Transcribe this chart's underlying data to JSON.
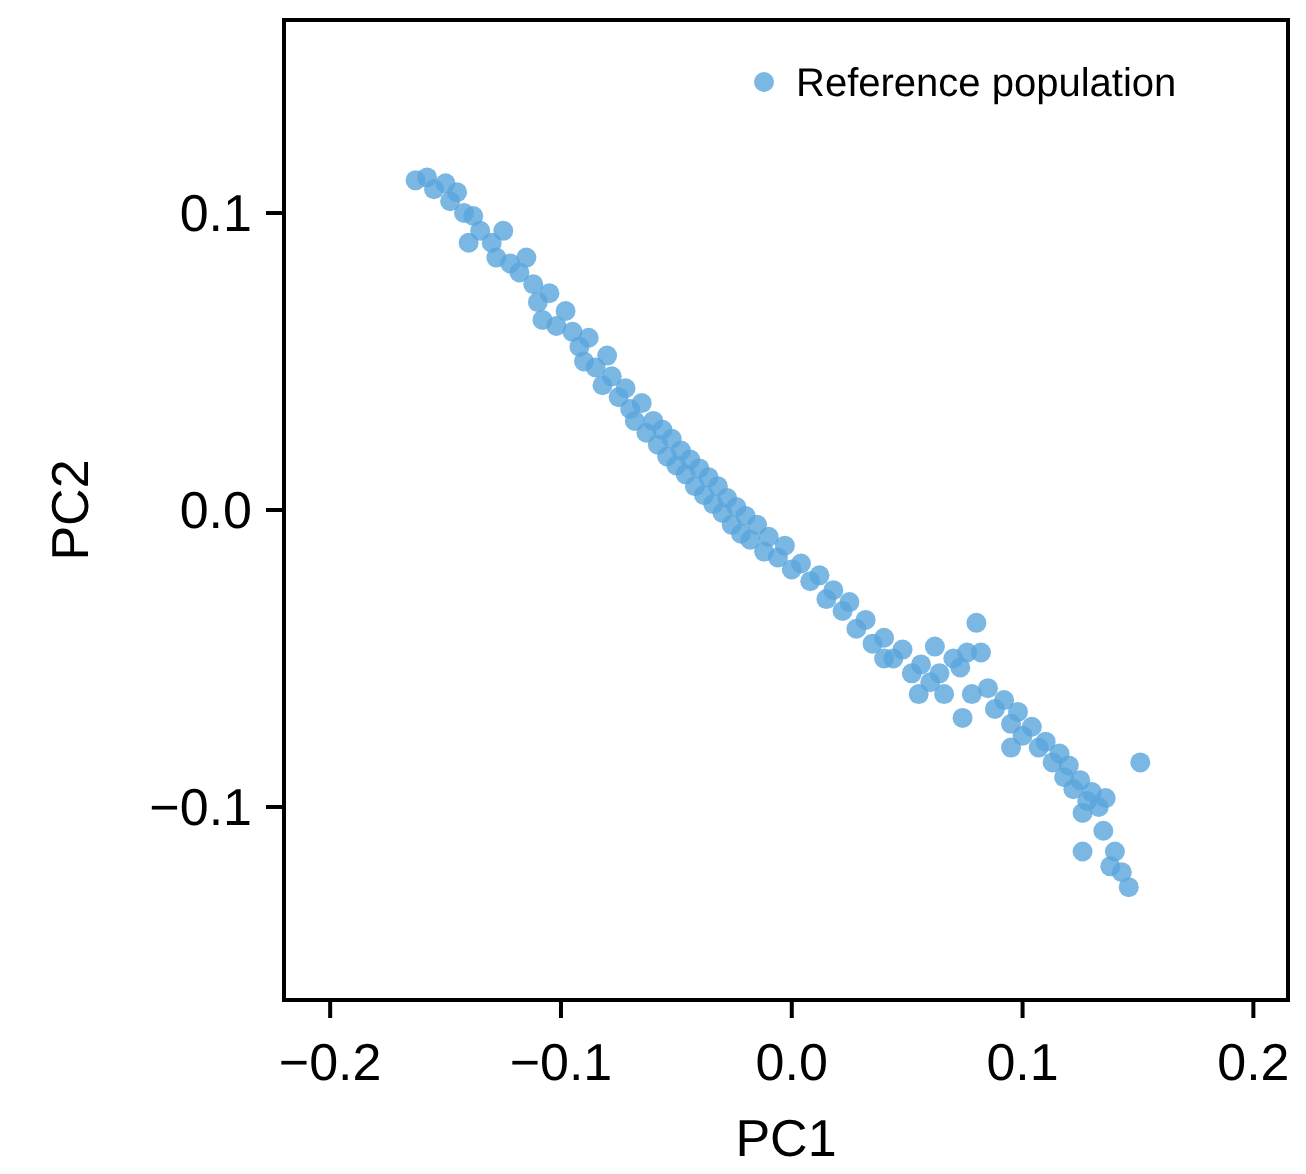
{
  "chart_data": {
    "type": "scatter",
    "xlabel": "PC1",
    "ylabel": "PC2",
    "xlim": [
      -0.22,
      0.215
    ],
    "ylim": [
      -0.165,
      0.165
    ],
    "xticks": [
      {
        "value": -0.2,
        "label": "−0.2"
      },
      {
        "value": -0.1,
        "label": "−0.1"
      },
      {
        "value": 0,
        "label": "0.0"
      },
      {
        "value": 0.1,
        "label": "0.1"
      },
      {
        "value": 0.2,
        "label": "0.2"
      }
    ],
    "yticks": [
      {
        "value": -0.1,
        "label": "−0.1"
      },
      {
        "value": 0,
        "label": "0.0"
      },
      {
        "value": 0.1,
        "label": "0.1"
      }
    ],
    "grid": false,
    "legend": "top right",
    "marker": "circle",
    "series": [
      {
        "name": "Reference population",
        "color": "#5aa5dc",
        "x": [
          -0.163,
          -0.158,
          -0.155,
          -0.15,
          -0.148,
          -0.145,
          -0.142,
          -0.138,
          -0.135,
          -0.14,
          -0.13,
          -0.125,
          -0.128,
          -0.122,
          -0.118,
          -0.115,
          -0.112,
          -0.11,
          -0.105,
          -0.108,
          -0.102,
          -0.098,
          -0.095,
          -0.092,
          -0.088,
          -0.09,
          -0.085,
          -0.08,
          -0.082,
          -0.078,
          -0.075,
          -0.072,
          -0.07,
          -0.068,
          -0.065,
          -0.063,
          -0.06,
          -0.058,
          -0.056,
          -0.054,
          -0.052,
          -0.05,
          -0.048,
          -0.046,
          -0.044,
          -0.042,
          -0.04,
          -0.038,
          -0.036,
          -0.034,
          -0.032,
          -0.03,
          -0.028,
          -0.026,
          -0.024,
          -0.022,
          -0.02,
          -0.018,
          -0.015,
          -0.012,
          -0.01,
          -0.006,
          -0.003,
          0.0,
          0.004,
          0.008,
          0.012,
          0.015,
          0.018,
          0.022,
          0.025,
          0.028,
          0.032,
          0.035,
          0.04,
          0.044,
          0.048,
          0.052,
          0.056,
          0.06,
          0.064,
          0.066,
          0.07,
          0.073,
          0.076,
          0.08,
          0.082,
          0.078,
          0.085,
          0.088,
          0.092,
          0.095,
          0.098,
          0.1,
          0.104,
          0.107,
          0.11,
          0.113,
          0.116,
          0.118,
          0.12,
          0.122,
          0.125,
          0.128,
          0.13,
          0.126,
          0.133,
          0.136,
          0.151,
          0.135,
          0.126,
          0.14,
          0.138,
          0.143,
          0.146,
          0.074,
          0.095,
          0.062,
          0.055,
          0.04
        ],
        "values": [
          0.111,
          0.112,
          0.108,
          0.11,
          0.104,
          0.107,
          0.1,
          0.099,
          0.094,
          0.09,
          0.09,
          0.094,
          0.085,
          0.083,
          0.08,
          0.085,
          0.076,
          0.07,
          0.073,
          0.064,
          0.062,
          0.067,
          0.06,
          0.055,
          0.058,
          0.05,
          0.048,
          0.052,
          0.042,
          0.045,
          0.038,
          0.041,
          0.034,
          0.03,
          0.036,
          0.026,
          0.03,
          0.022,
          0.027,
          0.018,
          0.024,
          0.015,
          0.02,
          0.012,
          0.017,
          0.008,
          0.014,
          0.005,
          0.011,
          0.002,
          0.008,
          -0.001,
          0.004,
          -0.005,
          0.001,
          -0.008,
          -0.002,
          -0.01,
          -0.005,
          -0.014,
          -0.009,
          -0.016,
          -0.012,
          -0.02,
          -0.018,
          -0.024,
          -0.022,
          -0.03,
          -0.027,
          -0.034,
          -0.031,
          -0.04,
          -0.037,
          -0.045,
          -0.043,
          -0.05,
          -0.047,
          -0.055,
          -0.052,
          -0.058,
          -0.055,
          -0.062,
          -0.05,
          -0.053,
          -0.048,
          -0.038,
          -0.048,
          -0.062,
          -0.06,
          -0.067,
          -0.064,
          -0.072,
          -0.068,
          -0.076,
          -0.073,
          -0.08,
          -0.078,
          -0.085,
          -0.082,
          -0.09,
          -0.086,
          -0.094,
          -0.091,
          -0.098,
          -0.095,
          -0.102,
          -0.1,
          -0.097,
          -0.085,
          -0.108,
          -0.115,
          -0.115,
          -0.12,
          -0.122,
          -0.127,
          -0.07,
          -0.08,
          -0.046,
          -0.062,
          -0.05
        ]
      }
    ]
  }
}
